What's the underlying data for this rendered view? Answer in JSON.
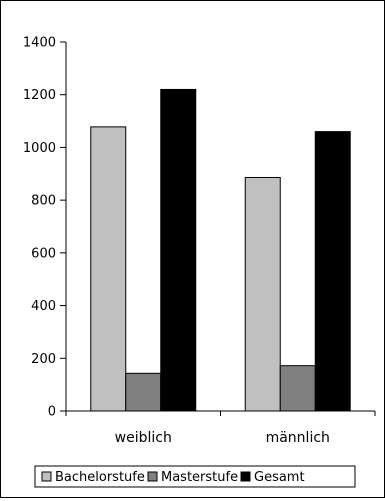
{
  "chart_data": {
    "type": "bar",
    "categories": [
      "weiblich",
      "männlich"
    ],
    "series": [
      {
        "name": "Bachelorstufe",
        "values": [
          1078,
          886
        ],
        "color": "#c0c0c0"
      },
      {
        "name": "Masterstufe",
        "values": [
          143,
          172
        ],
        "color": "#808080"
      },
      {
        "name": "Gesamt",
        "values": [
          1220,
          1060
        ],
        "color": "#000000"
      }
    ],
    "ylim": [
      0,
      1400
    ],
    "yticks": [
      0,
      200,
      400,
      600,
      800,
      1000,
      1200,
      1400
    ],
    "grid": false,
    "legend_position": "bottom"
  }
}
